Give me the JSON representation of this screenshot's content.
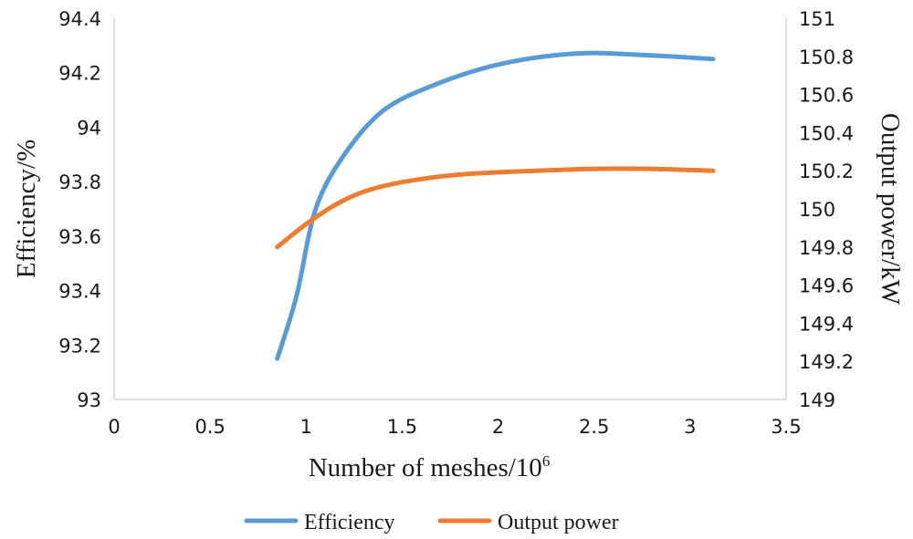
{
  "chart_data": {
    "type": "line",
    "xlabel": "Number of meshes/10",
    "xlabel_sup": "6",
    "ylabel": "Efficiency/%",
    "y2label": "Output power/kW",
    "xlim": [
      0,
      3.5
    ],
    "ylim": [
      93,
      94.4
    ],
    "y2lim": [
      149,
      151
    ],
    "x_ticks": [
      "0",
      "0.5",
      "1",
      "1.5",
      "2",
      "2.5",
      "3",
      "3.5"
    ],
    "y_ticks": [
      "93",
      "93.2",
      "93.4",
      "93.6",
      "93.8",
      "94",
      "94.2",
      "94.4"
    ],
    "y2_ticks": [
      "149",
      "149.2",
      "149.4",
      "149.6",
      "149.8",
      "150",
      "150.2",
      "150.4",
      "150.6",
      "150.8",
      "151"
    ],
    "grid": false,
    "legend_position": "bottom-center",
    "series": [
      {
        "name": "Efficiency",
        "axis": "left",
        "color": "#5B9BD5",
        "x": [
          0.85,
          0.95,
          1.05,
          1.2,
          1.4,
          1.65,
          2.0,
          2.4,
          2.75,
          3.12
        ],
        "values": [
          93.15,
          93.38,
          93.7,
          93.9,
          94.06,
          94.15,
          94.23,
          94.27,
          94.265,
          94.25
        ]
      },
      {
        "name": "Output power",
        "axis": "right",
        "color": "#ED7D31",
        "x": [
          0.85,
          1.0,
          1.15,
          1.3,
          1.5,
          1.8,
          2.2,
          2.5,
          2.8,
          3.12
        ],
        "values": [
          149.8,
          149.92,
          150.02,
          150.09,
          150.14,
          150.18,
          150.2,
          150.21,
          150.21,
          150.2
        ]
      }
    ]
  }
}
